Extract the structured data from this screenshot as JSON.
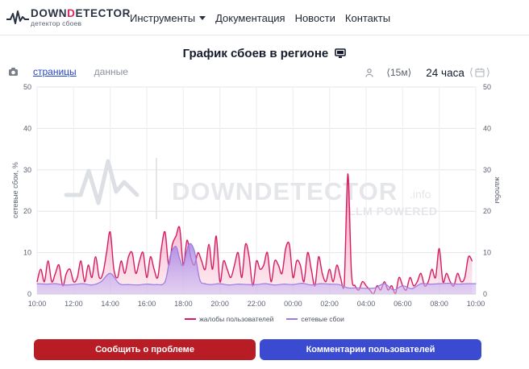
{
  "header": {
    "brand_first": "DOWN",
    "brand_d": "D",
    "brand_rest": "ETECTOR",
    "brand_sub": "детектор сбоев",
    "menu": [
      {
        "label": "Инструменты",
        "has_dropdown": true
      },
      {
        "label": "Документация"
      },
      {
        "label": "Новости"
      },
      {
        "label": "Контакты"
      }
    ]
  },
  "page": {
    "title": "График сбоев в регионе",
    "tabs": {
      "pages": "страницы",
      "data": "данные"
    },
    "interval": "⟨15м⟩",
    "period": "24 часа",
    "prev_arrow": "⟨",
    "next_arrow": "⟩"
  },
  "buttons": {
    "report": "Сообщить о проблеме",
    "comments": "Комментарии пользователей"
  },
  "colors": {
    "complaints": "#d81b60",
    "network": "#9c7ae0",
    "report_button": "#b81c25",
    "comments_button": "#3a4bd2"
  },
  "chart_data": {
    "type": "area",
    "title": "График сбоев в регионе",
    "xlabel": "",
    "ylabel": "сетевые сбои, %",
    "ylabel_right": "жалобы",
    "ylim": [
      0,
      50
    ],
    "yticks": [
      0,
      10,
      20,
      30,
      40,
      50
    ],
    "xlim": [
      10,
      34
    ],
    "x_tick_values": [
      10,
      12,
      14,
      16,
      18,
      20,
      22,
      24,
      26,
      28,
      30,
      32,
      34
    ],
    "x_tick_labels": [
      "10:00",
      "12:00",
      "14:00",
      "16:00",
      "18:00",
      "20:00",
      "22:00",
      "00:00",
      "02:00",
      "04:00",
      "06:00",
      "08:00",
      "10:00"
    ],
    "grid": true,
    "legend_position": "bottom-center",
    "watermark": {
      "main": "DOWNDETECTOR",
      "suffix": ".info",
      "sub": "LLM POWERED"
    },
    "series": [
      {
        "name": "жалобы пользователей",
        "color": "#d81b60",
        "x": [
          10,
          10.2,
          10.4,
          10.6,
          10.8,
          11.0,
          11.2,
          11.4,
          11.6,
          11.8,
          12.0,
          12.2,
          12.4,
          12.6,
          12.8,
          13.0,
          13.2,
          13.4,
          13.6,
          13.8,
          14.0,
          14.2,
          14.4,
          14.6,
          14.8,
          15.0,
          15.2,
          15.4,
          15.6,
          15.8,
          16.0,
          16.2,
          16.4,
          16.6,
          16.8,
          17.0,
          17.2,
          17.4,
          17.6,
          17.8,
          18.0,
          18.2,
          18.4,
          18.6,
          18.8,
          19.0,
          19.2,
          19.4,
          19.6,
          19.8,
          20.0,
          20.2,
          20.4,
          20.6,
          20.8,
          21.0,
          21.2,
          21.4,
          21.6,
          21.8,
          22.0,
          22.2,
          22.4,
          22.6,
          22.8,
          23.0,
          23.2,
          23.4,
          23.6,
          23.8,
          24.0,
          24.2,
          24.4,
          24.6,
          24.8,
          25.0,
          25.2,
          25.4,
          25.6,
          25.8,
          26.0,
          26.2,
          26.4,
          26.6,
          26.8,
          27.0,
          27.2,
          27.4,
          27.6,
          27.8,
          28.0,
          28.2,
          28.4,
          28.6,
          28.8,
          29.0,
          29.2,
          29.4,
          29.6,
          29.8,
          30.0,
          30.2,
          30.4,
          30.6,
          30.8,
          31.0,
          31.2,
          31.4,
          31.6,
          31.8,
          32.0,
          32.2,
          32.4,
          32.6,
          32.8,
          33.0,
          33.2,
          33.4,
          33.6,
          33.8
        ],
        "values": [
          3,
          6,
          3,
          8,
          3,
          5,
          7,
          2,
          5,
          6,
          3,
          4,
          8,
          3,
          7,
          4,
          9,
          4,
          5,
          10,
          15,
          6,
          4,
          8,
          5,
          9,
          10,
          5,
          8,
          10,
          4,
          9,
          6,
          4,
          11,
          15,
          7,
          12,
          14,
          16,
          7,
          13,
          9,
          7,
          10,
          8,
          6,
          12,
          6,
          14,
          3,
          8,
          6,
          4,
          7,
          10,
          4,
          12,
          9,
          2,
          8,
          6,
          7,
          10,
          3,
          8,
          7,
          5,
          11,
          12,
          4,
          8,
          7,
          3,
          10,
          6,
          2,
          9,
          5,
          3,
          6,
          3,
          7,
          4,
          2,
          29,
          5,
          2,
          1,
          3,
          2,
          1,
          0,
          2,
          1,
          3,
          1,
          2,
          0,
          4,
          2,
          1,
          4,
          2,
          3,
          5,
          2,
          3,
          6,
          4,
          11,
          3,
          5,
          3,
          2,
          5,
          3,
          4,
          9,
          8
        ],
        "fill": true
      },
      {
        "name": "сетевые сбои",
        "color": "#9c7ae0",
        "x": [
          10,
          10.5,
          11,
          11.5,
          12,
          12.5,
          13,
          13.5,
          14,
          14.5,
          15,
          15.5,
          16,
          16.5,
          17,
          17.3,
          17.6,
          17.8,
          18.0,
          18.3,
          18.6,
          18.9,
          19.2,
          19.5,
          20,
          20.5,
          21,
          21.5,
          22,
          22.5,
          23,
          23.5,
          24,
          24.5,
          25,
          25.5,
          26,
          26.5,
          27,
          27.5,
          28,
          28.5,
          29,
          29.5,
          30,
          30.5,
          31,
          31.5,
          32,
          32.5,
          33,
          33.5,
          34
        ],
        "values": [
          2.5,
          2.4,
          2.5,
          2.2,
          2.3,
          2.5,
          2.2,
          3.0,
          5.0,
          2.5,
          2.3,
          2.2,
          2.4,
          2.3,
          3.0,
          9.5,
          11.5,
          8.5,
          7.0,
          12.0,
          10.5,
          3.5,
          2.5,
          2.3,
          2.5,
          2.2,
          2.4,
          2.3,
          2.3,
          2.5,
          2.2,
          2.4,
          2.3,
          2.6,
          2.2,
          2.5,
          2.4,
          2.3,
          1.5,
          1.5,
          1.4,
          1.5,
          2.5,
          1.0,
          2.0,
          1.3,
          2.5,
          2.4,
          2.5,
          2.6,
          2.4,
          2.5,
          2.5
        ],
        "fill": true
      }
    ]
  }
}
